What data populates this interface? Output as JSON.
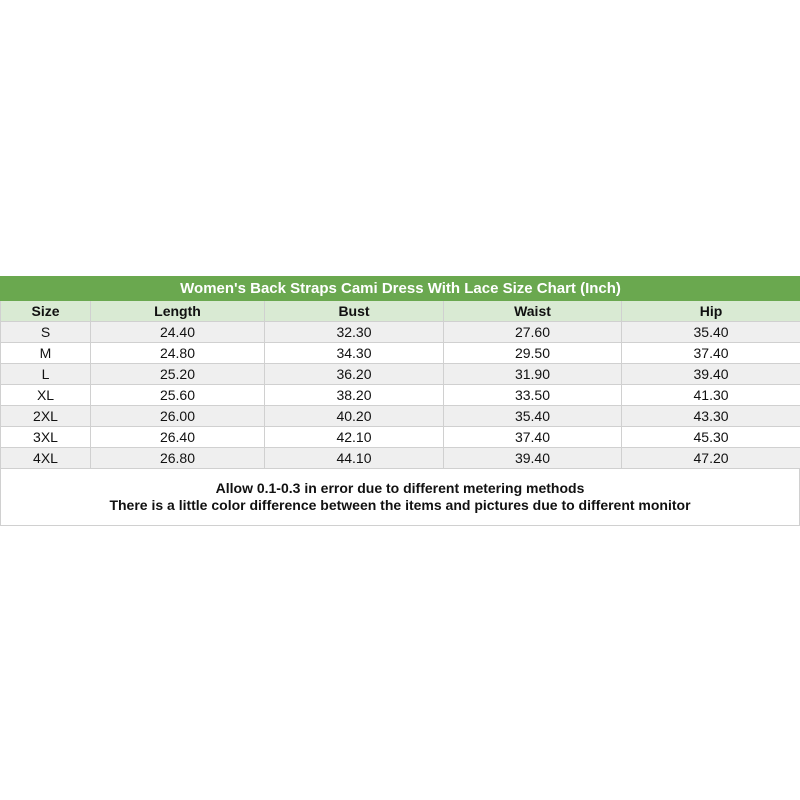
{
  "title": "Women's Back Straps Cami Dress With Lace Size Chart (Inch)",
  "headers": [
    "Size",
    "Length",
    "Bust",
    "Waist",
    "Hip"
  ],
  "rows": [
    [
      "S",
      "24.40",
      "32.30",
      "27.60",
      "35.40"
    ],
    [
      "M",
      "24.80",
      "34.30",
      "29.50",
      "37.40"
    ],
    [
      "L",
      "25.20",
      "36.20",
      "31.90",
      "39.40"
    ],
    [
      "XL",
      "25.60",
      "38.20",
      "33.50",
      "41.30"
    ],
    [
      "2XL",
      "26.00",
      "40.20",
      "35.40",
      "43.30"
    ],
    [
      "3XL",
      "26.40",
      "42.10",
      "37.40",
      "45.30"
    ],
    [
      "4XL",
      "26.80",
      "44.10",
      "39.40",
      "47.20"
    ]
  ],
  "notes": [
    "Allow 0.1-0.3 in error due to different metering methods",
    "There is a little color difference between the items and pictures due to different monitor"
  ],
  "colors": {
    "title_bg": "#6aa84f",
    "header_bg": "#d9ead3",
    "stripe_bg": "#efefef"
  }
}
